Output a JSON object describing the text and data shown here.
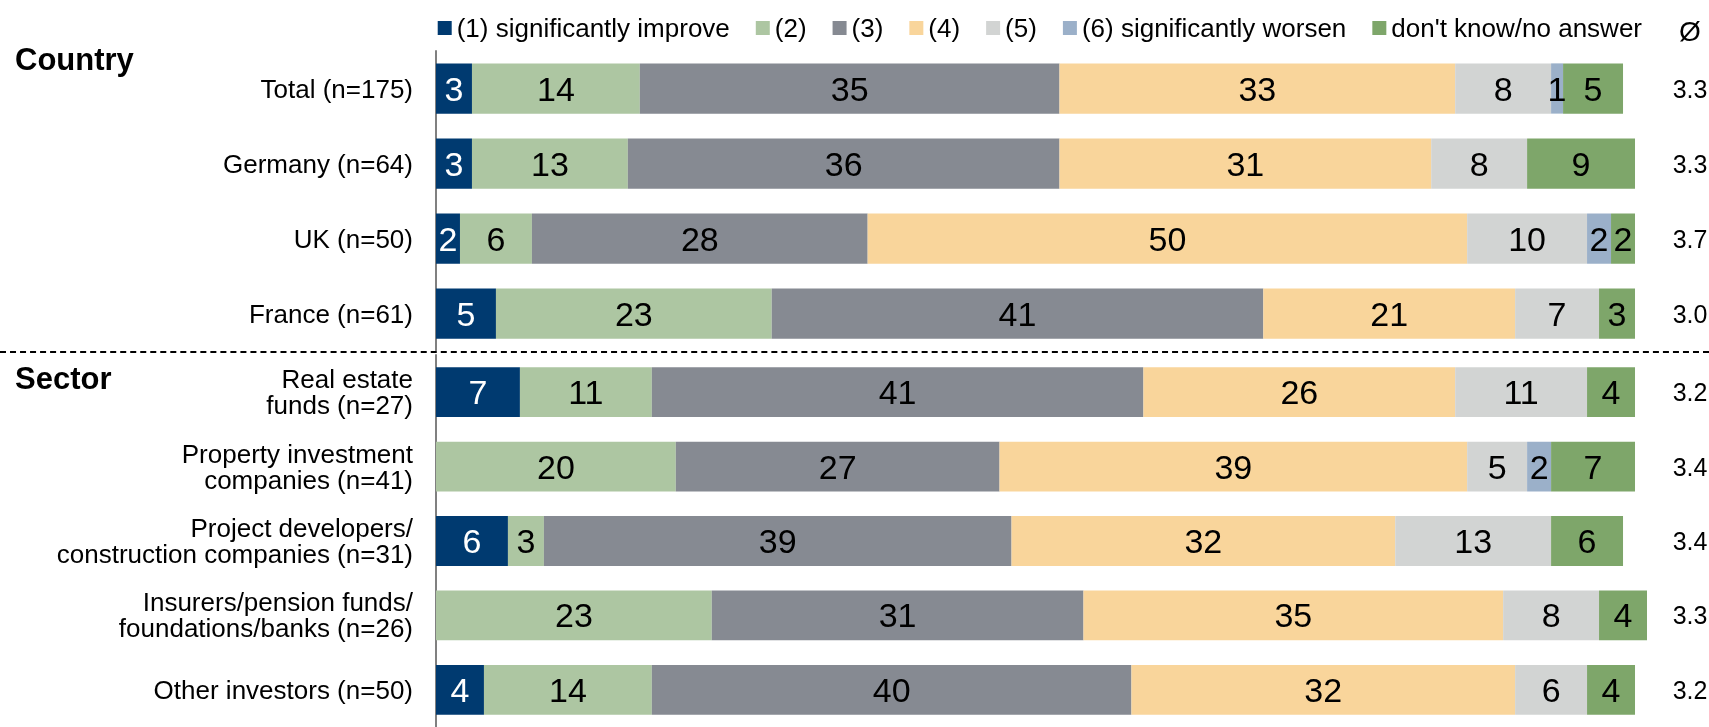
{
  "chart_data": [
    {
      "type": "bar",
      "orientation": "horizontal",
      "stacked": true,
      "title": "Country",
      "categories": [
        "Total (n=175)",
        "Germany (n=64)",
        "UK (n=50)",
        "France (n=61)"
      ],
      "series": [
        {
          "name": "(1) significantly improve",
          "color": "#003a70",
          "values": [
            3,
            3,
            2,
            5
          ]
        },
        {
          "name": "(2)",
          "color": "#adc6a2",
          "values": [
            14,
            13,
            6,
            23
          ]
        },
        {
          "name": "(3)",
          "color": "#868a92",
          "values": [
            35,
            36,
            28,
            41
          ]
        },
        {
          "name": "(4)",
          "color": "#f9d59b",
          "values": [
            33,
            31,
            50,
            21
          ]
        },
        {
          "name": "(5)",
          "color": "#d2d4d3",
          "values": [
            8,
            8,
            10,
            7
          ]
        },
        {
          "name": "(6) significantly worsen",
          "color": "#9bb0c9",
          "values": [
            1,
            null,
            2,
            null
          ]
        },
        {
          "name": "don't know/no answer",
          "color": "#7ea66a",
          "values": [
            5,
            9,
            2,
            3
          ]
        }
      ],
      "data_labels": true,
      "legend": "top",
      "tick_labels": "y",
      "annotations": [
        "Ø",
        "3.3",
        "3.3",
        "3.7",
        "3.0"
      ]
    },
    {
      "type": "bar",
      "orientation": "horizontal",
      "stacked": true,
      "title": "Sector",
      "categories": [
        "Real estate\nfunds (n=27)",
        "Property investment\ncompanies (n=41)",
        "Project developers/\nconstruction companies (n=31)",
        "Insurers/pension funds/\nfoundations/banks (n=26)",
        "Other investors (n=50)"
      ],
      "series": [
        {
          "color": "#003a70",
          "values": [
            7,
            null,
            6,
            null,
            4
          ]
        },
        {
          "color": "#adc6a2",
          "values": [
            11,
            20,
            3,
            23,
            14
          ]
        },
        {
          "color": "#868a92",
          "values": [
            41,
            27,
            39,
            31,
            40
          ]
        },
        {
          "color": "#f9d59b",
          "values": [
            26,
            39,
            32,
            35,
            32
          ]
        },
        {
          "color": "#d2d4d3",
          "values": [
            11,
            5,
            13,
            8,
            6
          ]
        },
        {
          "color": "#9bb0c9",
          "values": [
            null,
            2,
            null,
            null,
            null
          ]
        },
        {
          "color": "#7ea66a",
          "values": [
            4,
            7,
            6,
            4,
            4
          ]
        }
      ],
      "data_labels": true,
      "tick_labels": "y",
      "annotations": [
        "3.2",
        "3.4",
        "3.4",
        "3.3",
        "3.2"
      ]
    }
  ]
}
